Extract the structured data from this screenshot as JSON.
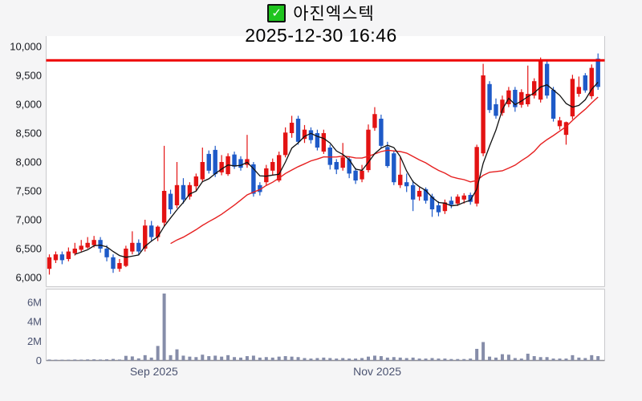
{
  "header": {
    "checkbox_icon": "✓",
    "title": "아진엑스텍",
    "datetime": "2025-12-30 16:46"
  },
  "chart_data": {
    "type": "candlestick",
    "title": "아진엑스텍",
    "subtitle": "2025-12-30 16:46",
    "panes": [
      "price",
      "volume"
    ],
    "y_axis": {
      "min": 6000,
      "max": 10000,
      "tick_values": [
        10000,
        9500,
        9000,
        8500,
        8000,
        7500,
        7000,
        6500,
        6000
      ],
      "tick_labels": [
        "10,000",
        "9,500",
        "9,000",
        "8,500",
        "8,000",
        "7,500",
        "7,000",
        "6,500",
        "6,000"
      ]
    },
    "volume_axis": {
      "unit": "M",
      "tick_values": [
        6,
        4,
        2,
        0
      ],
      "tick_labels": [
        "6M",
        "4M",
        "2M",
        "0"
      ]
    },
    "x_axis": {
      "labels": [
        {
          "text": "Sep 2025",
          "index": 13
        },
        {
          "text": "Nov 2025",
          "index": 48
        }
      ]
    },
    "reference_line": {
      "price": 9760
    },
    "ma_short_period": 5,
    "ma_long_period": 20,
    "colors": {
      "up": "#e31313",
      "down": "#1e5ac8",
      "ma_short": "#111111",
      "ma_long": "#e62020",
      "volume_bar": "#868da9",
      "reference": "#ee0000",
      "pane_bg": "#ffffff",
      "pane_border": "#c9c9cc",
      "axis_line": "#8f8f96",
      "price_label": "#17191f",
      "axis_label": "#4b5371"
    },
    "candles_format": [
      "open",
      "high",
      "low",
      "close",
      "volume_millions"
    ],
    "candles": [
      [
        6150,
        6400,
        6050,
        6350,
        0.1
      ],
      [
        6300,
        6450,
        6250,
        6400,
        0.08
      ],
      [
        6400,
        6450,
        6230,
        6300,
        0.07
      ],
      [
        6320,
        6520,
        6280,
        6450,
        0.08
      ],
      [
        6420,
        6600,
        6380,
        6500,
        0.1
      ],
      [
        6480,
        6650,
        6450,
        6550,
        0.09
      ],
      [
        6520,
        6700,
        6500,
        6600,
        0.11
      ],
      [
        6560,
        6720,
        6520,
        6650,
        0.12
      ],
      [
        6650,
        6700,
        6430,
        6500,
        0.1
      ],
      [
        6500,
        6560,
        6280,
        6350,
        0.12
      ],
      [
        6350,
        6400,
        6080,
        6150,
        0.16
      ],
      [
        6150,
        6320,
        6100,
        6250,
        0.1
      ],
      [
        6200,
        6550,
        6180,
        6500,
        0.48
      ],
      [
        6450,
        6800,
        6400,
        6600,
        0.42
      ],
      [
        6600,
        6660,
        6390,
        6450,
        0.22
      ],
      [
        6500,
        7000,
        6450,
        6900,
        0.55
      ],
      [
        6900,
        6980,
        6620,
        6700,
        0.3
      ],
      [
        6700,
        6900,
        6630,
        6880,
        1.5
      ],
      [
        6950,
        8280,
        6880,
        7500,
        6.9
      ],
      [
        7450,
        7520,
        7100,
        7180,
        0.55
      ],
      [
        7250,
        8000,
        7200,
        7600,
        1.15
      ],
      [
        7600,
        7720,
        7280,
        7350,
        0.5
      ],
      [
        7400,
        7650,
        7350,
        7600,
        0.4
      ],
      [
        7580,
        7800,
        7500,
        7750,
        0.35
      ],
      [
        7700,
        8250,
        7650,
        8000,
        0.6
      ],
      [
        8140,
        8200,
        7800,
        7850,
        0.45
      ],
      [
        8210,
        8280,
        7740,
        7790,
        0.5
      ],
      [
        7820,
        8120,
        7770,
        8000,
        0.4
      ],
      [
        7790,
        8150,
        7760,
        8100,
        0.55
      ],
      [
        8130,
        8180,
        7880,
        7920,
        0.35
      ],
      [
        8050,
        8100,
        7850,
        7900,
        0.3
      ],
      [
        7950,
        8470,
        7900,
        8050,
        0.45
      ],
      [
        7960,
        8000,
        7400,
        7450,
        0.5
      ],
      [
        7600,
        7650,
        7420,
        7480,
        0.3
      ],
      [
        7650,
        7950,
        7600,
        7890,
        0.35
      ],
      [
        7850,
        8060,
        7780,
        8000,
        0.3
      ],
      [
        7680,
        8180,
        7650,
        8120,
        0.4
      ],
      [
        8120,
        8600,
        8080,
        8510,
        0.45
      ],
      [
        8500,
        8800,
        8420,
        8680,
        0.4
      ],
      [
        8750,
        8800,
        8300,
        8350,
        0.35
      ],
      [
        8400,
        8640,
        8330,
        8560,
        0.25
      ],
      [
        8550,
        8600,
        8320,
        8380,
        0.2
      ],
      [
        8500,
        8560,
        8200,
        8250,
        0.25
      ],
      [
        8180,
        8560,
        8140,
        8500,
        0.3
      ],
      [
        8250,
        8300,
        7870,
        7950,
        0.25
      ],
      [
        8000,
        8050,
        7790,
        7870,
        0.2
      ],
      [
        7900,
        8330,
        7850,
        8080,
        0.25
      ],
      [
        8050,
        8100,
        7720,
        7800,
        0.2
      ],
      [
        7850,
        7900,
        7620,
        7680,
        0.2
      ],
      [
        7700,
        7950,
        7650,
        7850,
        0.25
      ],
      [
        7860,
        8650,
        7820,
        8560,
        0.4
      ],
      [
        8590,
        8950,
        8540,
        8830,
        0.5
      ],
      [
        8750,
        8820,
        8230,
        8280,
        0.45
      ],
      [
        8260,
        8350,
        7900,
        7930,
        0.3
      ],
      [
        8150,
        8200,
        7600,
        7650,
        0.35
      ],
      [
        7600,
        8080,
        7550,
        7780,
        0.3
      ],
      [
        7650,
        7800,
        7480,
        7580,
        0.25
      ],
      [
        7600,
        7680,
        7150,
        7350,
        0.3
      ],
      [
        7400,
        7560,
        7330,
        7500,
        0.2
      ],
      [
        7530,
        7560,
        7280,
        7330,
        0.2
      ],
      [
        7400,
        7450,
        7050,
        7180,
        0.25
      ],
      [
        7250,
        7320,
        7060,
        7130,
        0.2
      ],
      [
        7150,
        7350,
        7100,
        7300,
        0.2
      ],
      [
        7330,
        7400,
        7200,
        7260,
        0.15
      ],
      [
        7280,
        7440,
        7240,
        7400,
        0.15
      ],
      [
        7350,
        7460,
        7280,
        7420,
        0.15
      ],
      [
        7430,
        7470,
        7260,
        7310,
        0.2
      ],
      [
        7280,
        8300,
        7230,
        8260,
        1.2
      ],
      [
        8150,
        9700,
        8100,
        9500,
        1.9
      ],
      [
        9350,
        9400,
        8850,
        8900,
        0.4
      ],
      [
        9000,
        9100,
        8750,
        8800,
        0.3
      ],
      [
        8850,
        9150,
        8800,
        9080,
        0.65
      ],
      [
        9000,
        9300,
        8950,
        9240,
        0.6
      ],
      [
        9250,
        9300,
        8870,
        8950,
        0.25
      ],
      [
        8990,
        9260,
        8940,
        9210,
        0.2
      ],
      [
        9000,
        9670,
        8960,
        9180,
        0.7
      ],
      [
        9150,
        9450,
        9100,
        9400,
        0.45
      ],
      [
        9080,
        9810,
        9030,
        9750,
        0.35
      ],
      [
        9700,
        9760,
        9100,
        9150,
        0.35
      ],
      [
        9250,
        9300,
        8700,
        8750,
        0.2
      ],
      [
        8620,
        8780,
        8560,
        8720,
        0.2
      ],
      [
        8470,
        8700,
        8300,
        8690,
        0.2
      ],
      [
        8790,
        9510,
        8740,
        9440,
        0.55
      ],
      [
        9180,
        9480,
        9130,
        9300,
        0.3
      ],
      [
        9500,
        9540,
        9200,
        9240,
        0.25
      ],
      [
        9140,
        9690,
        9090,
        9630,
        0.55
      ],
      [
        9790,
        9880,
        9250,
        9300,
        0.45
      ]
    ]
  }
}
